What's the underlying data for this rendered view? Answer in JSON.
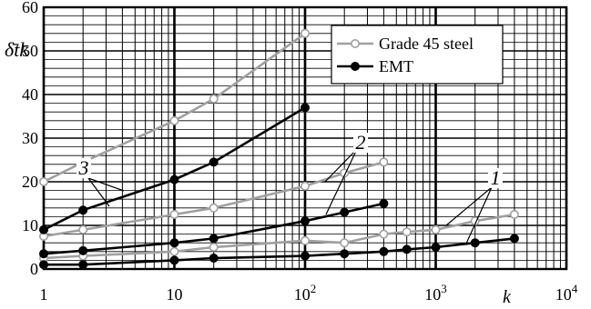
{
  "chart_data": {
    "type": "line",
    "xscale": "log",
    "xlim": [
      1,
      10000
    ],
    "ylim": [
      0,
      60
    ],
    "grid": true,
    "legend_position": "top-right",
    "xlabel": "k",
    "ylabel": "δ̄tk",
    "x_ticks": [
      {
        "label": "1",
        "exp": ""
      },
      {
        "label": "10",
        "exp": ""
      },
      {
        "label": "10",
        "exp": "2"
      },
      {
        "label": "10",
        "exp": "3"
      },
      {
        "label": "10",
        "exp": "4"
      }
    ],
    "y_ticks": [
      "0",
      "10",
      "20",
      "30",
      "40",
      "50",
      "60"
    ],
    "legend": [
      {
        "label": "Grade 45 steel",
        "color": "#a0a0a0",
        "marker": "open-circle"
      },
      {
        "label": "EMT",
        "color": "#000000",
        "marker": "filled-circle"
      }
    ],
    "groups": [
      {
        "label": "1",
        "steel": {
          "x": [
            1,
            2,
            10,
            20,
            100,
            200,
            400,
            600,
            1000,
            2000,
            4000
          ],
          "y": [
            2.5,
            3,
            4,
            5,
            6.5,
            6,
            8,
            8.5,
            9,
            11,
            12.5
          ]
        },
        "emt": {
          "x": [
            1,
            2,
            10,
            20,
            100,
            200,
            400,
            600,
            1000,
            2000,
            4000
          ],
          "y": [
            1,
            1,
            2,
            2.5,
            3,
            3.5,
            4,
            4.5,
            5,
            6,
            7
          ]
        }
      },
      {
        "label": "2",
        "steel": {
          "x": [
            1,
            2,
            10,
            20,
            100,
            200,
            400
          ],
          "y": [
            7.5,
            9,
            12.5,
            14,
            19,
            22,
            24.5
          ]
        },
        "emt": {
          "x": [
            1,
            2,
            10,
            20,
            100,
            200,
            400
          ],
          "y": [
            3.5,
            4.2,
            6,
            7,
            11,
            13,
            15
          ]
        }
      },
      {
        "label": "3",
        "steel": {
          "x": [
            1,
            2,
            10,
            20,
            100
          ],
          "y": [
            20,
            24.5,
            34,
            39,
            54
          ]
        },
        "emt": {
          "x": [
            1,
            2,
            10,
            20,
            100
          ],
          "y": [
            9,
            13.5,
            20.5,
            24.5,
            37
          ]
        }
      }
    ]
  }
}
